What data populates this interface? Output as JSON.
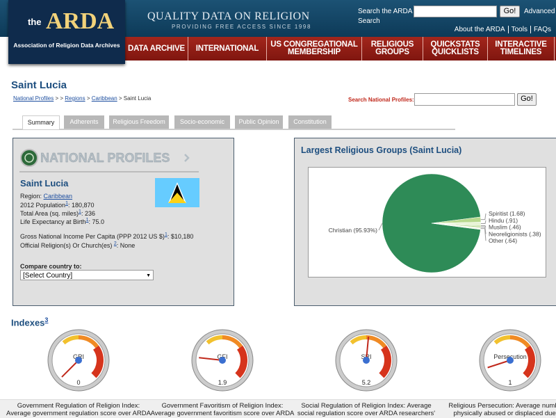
{
  "header": {
    "logo_the": "the",
    "logo_name": "ARDA",
    "logo_sub": "Association of Religion Data Archives",
    "tagline": "QUALITY DATA ON RELIGION",
    "tagline_sub": "PROVIDING FREE ACCESS SINCE 1998",
    "search_label": "Search the ARDA",
    "search_button": "Go!",
    "advanced": "Advanced",
    "advanced_2": "Search",
    "links": [
      "About the ARDA",
      "Tools",
      "FAQs"
    ]
  },
  "nav": [
    "DATA ARCHIVE",
    "INTERNATIONAL",
    "US CONGREGATIONAL MEMBERSHIP",
    "RELIGIOUS GROUPS",
    "QUICKSTATS QUICKLISTS",
    "INTERACTIVE TIMELINES"
  ],
  "page": {
    "title": "Saint Lucia",
    "breadcrumb": [
      {
        "text": "National Profiles",
        "link": true
      },
      {
        "text": " > > ",
        "link": false
      },
      {
        "text": "Regions",
        "link": true
      },
      {
        "text": " > ",
        "link": false
      },
      {
        "text": "Caribbean",
        "link": true
      },
      {
        "text": " > Saint Lucia",
        "link": false
      }
    ],
    "search_label": "Search National Profiles:",
    "search_button": "Go!",
    "tabs": [
      "Summary",
      "Adherents",
      "Religious Freedom",
      "Socio-economic",
      "Public Opinion",
      "Constitution"
    ],
    "active_tab": 0
  },
  "profile": {
    "heading": "NATIONAL PROFILES",
    "name": "Saint Lucia",
    "region_label": "Region: ",
    "region": "Caribbean",
    "facts": [
      {
        "label": "2012 Population",
        "note": "1",
        "text": ": 180,870"
      },
      {
        "label": "Total Area (sq. miles)",
        "note": "1",
        "text": ": 236"
      },
      {
        "label": "Life Expectancy at Birth",
        "note": "1",
        "text": ": 75.0"
      }
    ],
    "facts2": [
      {
        "label": "Gross National Income Per Capita (PPP 2012 US $)",
        "note": "1",
        "text": ": $10,180"
      },
      {
        "label": "Official Religion(s) Or Church(es) ",
        "note": "2",
        "text": ": None"
      }
    ],
    "compare_label": "Compare country to:",
    "select": "[Select Country]"
  },
  "chart": {
    "type": "pie",
    "title": "Largest Religious Groups (Saint Lucia)",
    "labels": [
      "Christian (95.93%)",
      "Spiritist (1.68)",
      "Hindu (.91)",
      "Muslim (.46)",
      "Neoreligionists (.38)",
      "Other (.64)"
    ],
    "values": [
      95.93,
      1.68,
      0.91,
      0.46,
      0.38,
      0.64
    ],
    "colors": [
      "#2e8b57",
      "#b9d98e",
      "#e8f4d6",
      "#cfe8b0",
      "#a8cf7a",
      "#f4f9ec"
    ]
  },
  "indexes": {
    "heading": "Indexes",
    "note": "3",
    "lim": [
      0,
      10
    ],
    "gauges": [
      {
        "label": "GRI",
        "value": 0,
        "caption": [
          "Government Regulation of Religion Index:",
          "Average government regulation score over ARDA"
        ]
      },
      {
        "label": "GFI",
        "value": 1.9,
        "caption": [
          "Government Favoritism of Religion Index:",
          "Average government favoritism score over ARDA"
        ]
      },
      {
        "label": "SRI",
        "value": 5.2,
        "caption": [
          "Social Regulation of Religion Index: Average",
          "social regulation score over ARDA researchers'"
        ]
      },
      {
        "label": "Persecution",
        "value": 1,
        "caption": [
          "Religious Persecution: Average number of",
          "physically abused or displaced due to t"
        ]
      }
    ]
  }
}
